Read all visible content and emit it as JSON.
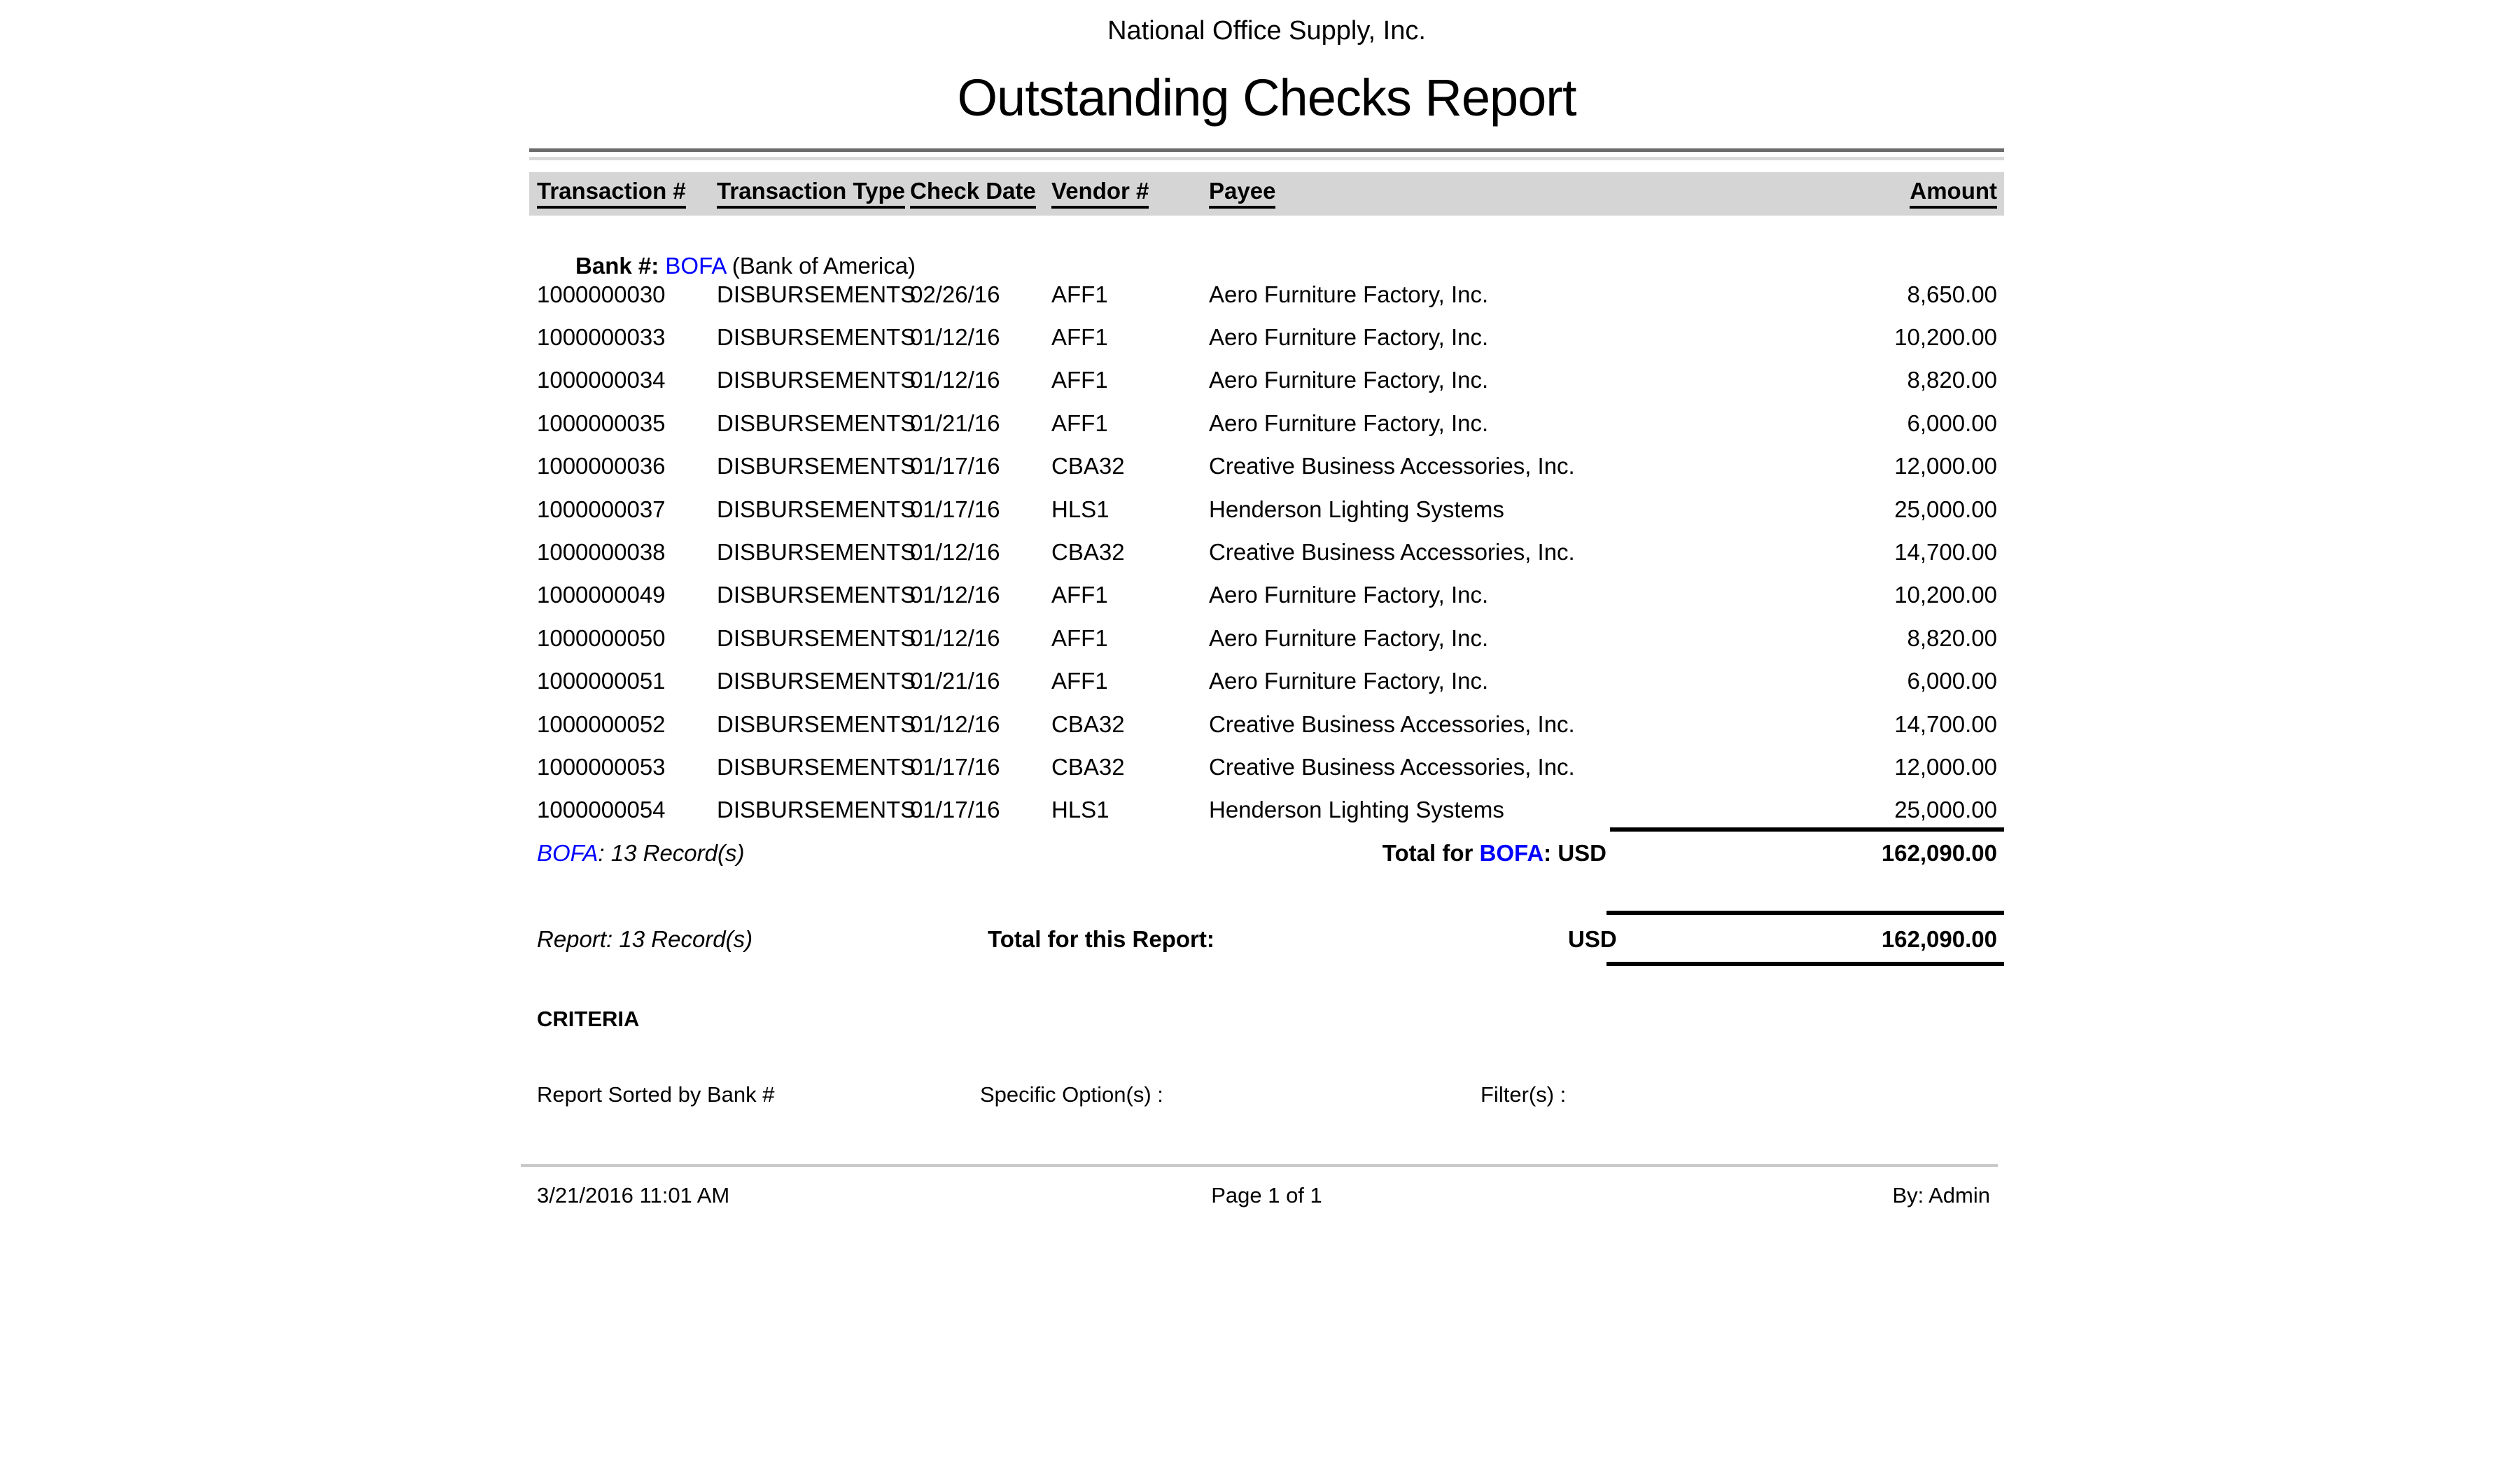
{
  "report": {
    "company": "National Office Supply, Inc.",
    "title": "Outstanding Checks Report",
    "columns": {
      "txn": "Transaction #",
      "type": "Transaction Type",
      "date": "Check Date",
      "vendor": "Vendor #",
      "payee": "Payee",
      "amount": "Amount"
    },
    "bank_line": {
      "prefix": "Bank #: ",
      "code": "BOFA",
      "name": " (Bank of America)"
    },
    "rows": [
      {
        "txn": "1000000030",
        "type": "DISBURSEMENTS",
        "date": "02/26/16",
        "vendor": "AFF1",
        "payee": "Aero Furniture Factory, Inc.",
        "amount": "8,650.00"
      },
      {
        "txn": "1000000033",
        "type": "DISBURSEMENTS",
        "date": "01/12/16",
        "vendor": "AFF1",
        "payee": "Aero Furniture Factory, Inc.",
        "amount": "10,200.00"
      },
      {
        "txn": "1000000034",
        "type": "DISBURSEMENTS",
        "date": "01/12/16",
        "vendor": "AFF1",
        "payee": "Aero Furniture Factory, Inc.",
        "amount": "8,820.00"
      },
      {
        "txn": "1000000035",
        "type": "DISBURSEMENTS",
        "date": "01/21/16",
        "vendor": "AFF1",
        "payee": "Aero Furniture Factory, Inc.",
        "amount": "6,000.00"
      },
      {
        "txn": "1000000036",
        "type": "DISBURSEMENTS",
        "date": "01/17/16",
        "vendor": "CBA32",
        "payee": "Creative Business Accessories, Inc.",
        "amount": "12,000.00"
      },
      {
        "txn": "1000000037",
        "type": "DISBURSEMENTS",
        "date": "01/17/16",
        "vendor": "HLS1",
        "payee": "Henderson Lighting Systems",
        "amount": "25,000.00"
      },
      {
        "txn": "1000000038",
        "type": "DISBURSEMENTS",
        "date": "01/12/16",
        "vendor": "CBA32",
        "payee": "Creative Business Accessories, Inc.",
        "amount": "14,700.00"
      },
      {
        "txn": "1000000049",
        "type": "DISBURSEMENTS",
        "date": "01/12/16",
        "vendor": "AFF1",
        "payee": "Aero Furniture Factory, Inc.",
        "amount": "10,200.00"
      },
      {
        "txn": "1000000050",
        "type": "DISBURSEMENTS",
        "date": "01/12/16",
        "vendor": "AFF1",
        "payee": "Aero Furniture Factory, Inc.",
        "amount": "8,820.00"
      },
      {
        "txn": "1000000051",
        "type": "DISBURSEMENTS",
        "date": "01/21/16",
        "vendor": "AFF1",
        "payee": "Aero Furniture Factory, Inc.",
        "amount": "6,000.00"
      },
      {
        "txn": "1000000052",
        "type": "DISBURSEMENTS",
        "date": "01/12/16",
        "vendor": "CBA32",
        "payee": "Creative Business Accessories, Inc.",
        "amount": "14,700.00"
      },
      {
        "txn": "1000000053",
        "type": "DISBURSEMENTS",
        "date": "01/17/16",
        "vendor": "CBA32",
        "payee": "Creative Business Accessories, Inc.",
        "amount": "12,000.00"
      },
      {
        "txn": "1000000054",
        "type": "DISBURSEMENTS",
        "date": "01/17/16",
        "vendor": "HLS1",
        "payee": "Henderson Lighting Systems",
        "amount": "25,000.00"
      }
    ],
    "bank_total": {
      "records_code": "BOFA",
      "records_rest": ": 13 Record(s)",
      "label_prefix": "Total for ",
      "label_code": "BOFA",
      "label_suffix": ": USD",
      "amount": "162,090.00"
    },
    "report_total": {
      "records": "Report: 13 Record(s)",
      "label": "Total for this Report:",
      "currency": "USD",
      "amount": "162,090.00"
    },
    "criteria": {
      "heading": "CRITERIA",
      "sorted": "Report Sorted by Bank #",
      "specific": "Specific Option(s) :",
      "filters": "Filter(s) :"
    },
    "footer": {
      "datetime": "3/21/2016 11:01 AM",
      "page": "Page 1 of 1",
      "by": "By: Admin"
    },
    "colors": {
      "link_blue": "#0000ff",
      "header_bg": "#d5d5d5",
      "rule_dark": "#6b6b6b",
      "rule_light": "#d9d9d9",
      "footer_rule": "#c9c9c9"
    }
  }
}
